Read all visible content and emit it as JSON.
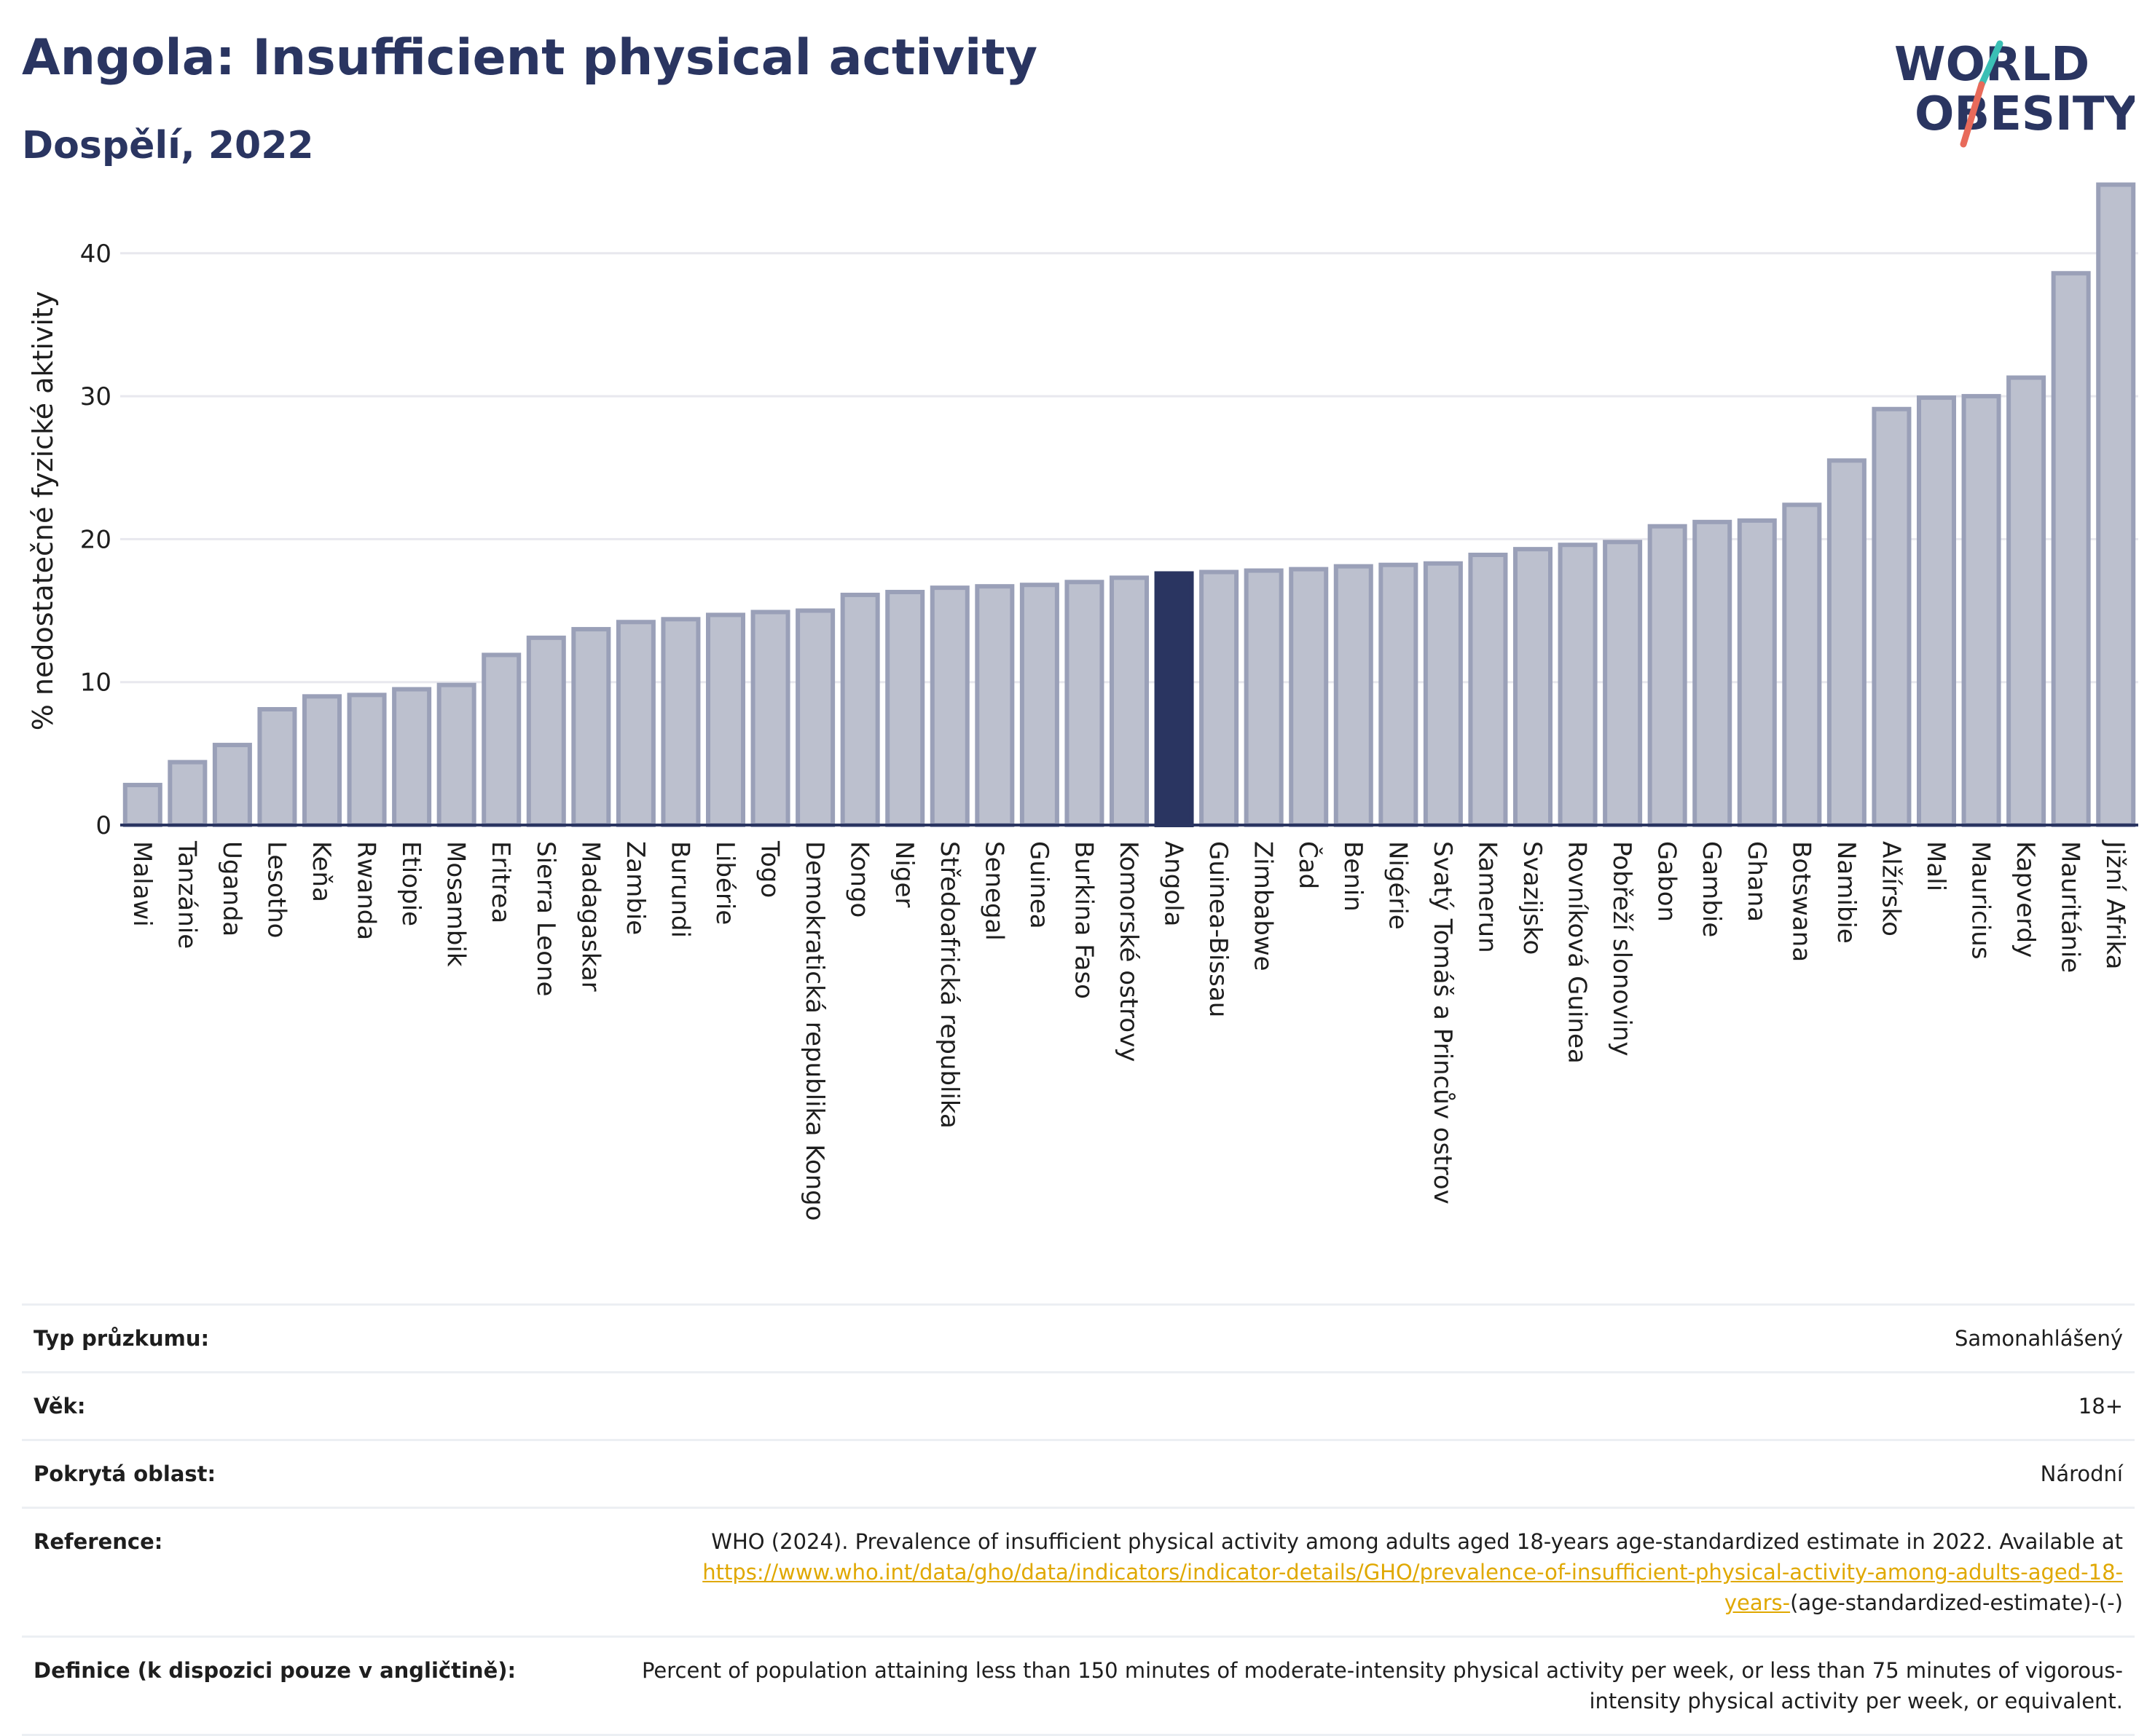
{
  "header": {
    "title": "Angola: Insufficient physical activity",
    "subtitle": "Dospělí, 2022"
  },
  "logo": {
    "line1": "WORLD",
    "line2": "OBESITY",
    "colors": {
      "text": "#2a3561",
      "slash_teal": "#3bbfb5",
      "slash_coral": "#e86a5a"
    }
  },
  "chart_data": {
    "type": "bar",
    "ylabel": "% nedostatečné fyzické aktivity",
    "xlabel": "",
    "ylim": [
      0,
      46
    ],
    "yticks": [
      0,
      10,
      20,
      30,
      40
    ],
    "grid": true,
    "highlight": "Angola",
    "colors": {
      "bar": "#bcc0ce",
      "bar_edge": "#9aa0b8",
      "highlight": "#2a3561",
      "grid": "#e8e8ee"
    },
    "categories": [
      "Malawi",
      "Tanzánie",
      "Uganda",
      "Lesotho",
      "Keňa",
      "Rwanda",
      "Etiopie",
      "Mosambik",
      "Eritrea",
      "Sierra Leone",
      "Madagaskar",
      "Zambie",
      "Burundi",
      "Libérie",
      "Togo",
      "Demokratická republika Kongo",
      "Kongo",
      "Niger",
      "Středoafrická republika",
      "Senegal",
      "Guinea",
      "Burkina Faso",
      "Komorské ostrovy",
      "Angola",
      "Guinea-Bissau",
      "Zimbabwe",
      "Čad",
      "Benin",
      "Nigérie",
      "Svatý Tomáš a Princův ostrov",
      "Kamerun",
      "Svazijsko",
      "Rovníková Guinea",
      "Pobřeží slonoviny",
      "Gabon",
      "Gambie",
      "Ghana",
      "Botswana",
      "Namibie",
      "Alžírsko",
      "Mali",
      "Mauricius",
      "Kapverdy",
      "Mauritánie",
      "Jižní Afrika"
    ],
    "values": [
      2.8,
      4.4,
      5.6,
      8.1,
      9.0,
      9.1,
      9.5,
      9.8,
      11.9,
      13.1,
      13.7,
      14.2,
      14.4,
      14.7,
      14.9,
      15.0,
      16.1,
      16.3,
      16.6,
      16.7,
      16.8,
      17.0,
      17.3,
      17.6,
      17.7,
      17.8,
      17.9,
      18.1,
      18.2,
      18.3,
      18.9,
      19.3,
      19.6,
      19.8,
      20.9,
      21.2,
      21.3,
      22.4,
      25.5,
      29.1,
      29.9,
      30.0,
      31.3,
      38.6,
      44.8
    ]
  },
  "info": {
    "survey_type_label": "Typ průzkumu:",
    "survey_type_value": "Samonahlášený",
    "age_label": "Věk:",
    "age_value": "18+",
    "coverage_label": "Pokrytá oblast:",
    "coverage_value": "Národní",
    "reference_label": "Reference:",
    "reference_text": "WHO (2024). Prevalence of insufficient physical activity among adults aged 18-years age-standardized estimate in 2022. Available at",
    "reference_link": "https://www.who.int/data/gho/data/indicators/indicator-details/GHO/prevalence-of-insufficient-physical-activity-among-adults-aged-18-years-",
    "reference_suffix": "(age-standardized-estimate)-(-)",
    "definition_label": "Definice (k dispozici pouze v angličtině):",
    "definition_text": "Percent of population attaining less than 150 minutes of moderate-intensity physical activity per week, or less than 75 minutes of vigorous-intensity physical activity per week, or equivalent."
  }
}
